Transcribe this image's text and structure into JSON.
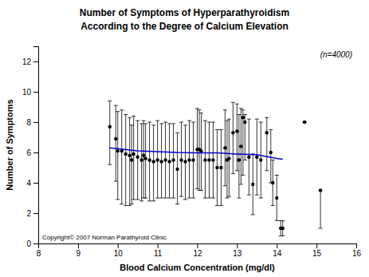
{
  "chart_data": {
    "type": "scatter",
    "title": "Number of Symptoms of Hyperparathyroidism",
    "subtitle": "According to the Degree of Calcium Elevation",
    "x_label": "Blood Calcium Concentration (mg/dl)",
    "y_label": "Number of Symptoms",
    "xlim": [
      8,
      16
    ],
    "ylim": [
      0,
      13
    ],
    "xticks": [
      8,
      9,
      10,
      11,
      12,
      13,
      14,
      15,
      16
    ],
    "yticks": [
      0,
      2,
      4,
      6,
      8,
      10,
      12
    ],
    "annotations": [
      "(n=4000)",
      "Copyright© 2007 Norman Parathyroid Clinic"
    ],
    "series": [
      {
        "type": "scatter",
        "color": "#000000",
        "x": [
          9.8,
          9.95,
          10.0,
          10.1,
          10.2,
          10.3,
          10.35,
          10.4,
          10.5,
          10.6,
          10.65,
          10.7,
          10.8,
          10.9,
          11.0,
          11.1,
          11.2,
          11.3,
          11.4,
          11.5,
          11.6,
          11.7,
          11.8,
          11.9,
          12.0,
          12.05,
          12.1,
          12.2,
          12.3,
          12.4,
          12.5,
          12.6,
          12.7,
          12.75,
          12.8,
          12.9,
          13.0,
          13.05,
          13.1,
          13.15,
          13.2,
          13.3,
          13.4,
          13.5,
          13.6,
          13.75,
          13.85,
          13.9,
          14.0,
          14.1,
          14.15,
          14.7,
          15.1
        ],
        "values": [
          7.7,
          6.9,
          6.1,
          6.1,
          5.9,
          5.8,
          5.5,
          5.9,
          5.7,
          5.5,
          5.8,
          5.6,
          5.5,
          5.4,
          5.5,
          5.4,
          5.5,
          5.4,
          5.5,
          4.9,
          5.5,
          5.4,
          5.5,
          5.5,
          6.2,
          6.2,
          6.1,
          5.5,
          5.5,
          5.5,
          5.0,
          5.0,
          6.3,
          5.5,
          5.6,
          7.3,
          7.4,
          5.5,
          6.4,
          8.3,
          8.0,
          5.7,
          3.9,
          5.7,
          5.5,
          7.3,
          6.0,
          4.0,
          3.0,
          1.0,
          1.0,
          8.0,
          3.5
        ],
        "yerr_lo": [
          2.5,
          2.8,
          3.2,
          3.5,
          3.4,
          3.3,
          2.9,
          3.0,
          2.8,
          2.7,
          2.8,
          2.6,
          2.7,
          2.6,
          2.5,
          2.4,
          2.5,
          2.4,
          2.5,
          2.3,
          2.4,
          2.5,
          2.5,
          2.5,
          2.6,
          2.7,
          2.6,
          2.5,
          2.5,
          2.5,
          2.5,
          2.5,
          2.5,
          2.5,
          2.5,
          2.7,
          2.6,
          2.5,
          2.5,
          3.8,
          2.5,
          2.5,
          2.0,
          2.5,
          2.5,
          2.5,
          2.0,
          1.5,
          1.5,
          0.5,
          0.5,
          0.0,
          2.5
        ],
        "yerr_hi": [
          1.7,
          2.2,
          2.6,
          2.7,
          2.6,
          2.5,
          2.3,
          2.5,
          2.4,
          2.4,
          2.3,
          2.3,
          2.5,
          2.4,
          2.6,
          2.5,
          2.5,
          2.5,
          2.4,
          2.4,
          2.5,
          2.4,
          2.6,
          2.5,
          2.7,
          2.6,
          2.5,
          2.6,
          2.5,
          2.5,
          2.5,
          2.5,
          2.5,
          2.6,
          2.6,
          2.0,
          1.8,
          3.0,
          2.5,
          0.5,
          0.5,
          2.5,
          2.0,
          2.5,
          2.5,
          1.0,
          1.5,
          1.5,
          1.5,
          0.5,
          0.5,
          0.0,
          0.0
        ]
      },
      {
        "type": "line",
        "color": "#0000cc",
        "x": [
          9.8,
          10.0,
          10.5,
          11.0,
          11.5,
          12.0,
          12.5,
          13.0,
          13.5,
          14.0,
          14.15
        ],
        "values": [
          6.3,
          6.25,
          6.1,
          6.05,
          6.0,
          5.98,
          5.97,
          5.9,
          5.85,
          5.6,
          5.55
        ]
      }
    ]
  }
}
